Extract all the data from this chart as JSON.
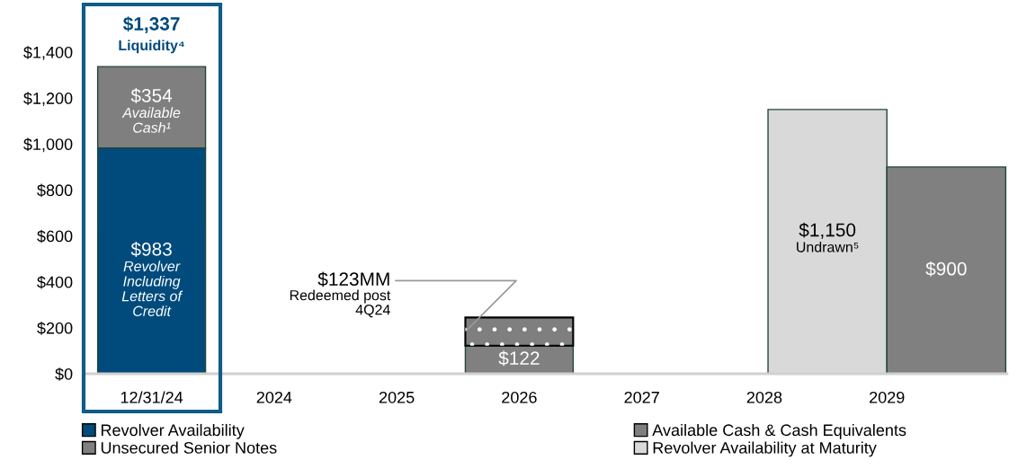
{
  "chart_data": {
    "type": "bar",
    "categories": [
      "12/31/24",
      "2024",
      "2025",
      "2026",
      "2027",
      "2028",
      "2029"
    ],
    "series": [
      {
        "name": "Revolver Availability",
        "color": "#004b7c",
        "values": [
          983,
          null,
          null,
          null,
          null,
          null,
          null
        ],
        "value_labels": [
          "$983\nRevolver\nIncluding\nLetters of\nCredit",
          null,
          null,
          null,
          null,
          null,
          null
        ]
      },
      {
        "name": "Available Cash & Cash Equivalents",
        "color": "#7f7f7f",
        "values": [
          354,
          null,
          null,
          null,
          null,
          null,
          null
        ],
        "base": [
          983,
          null,
          null,
          null,
          null,
          null,
          null
        ],
        "value_labels": [
          "$354\nAvailable\nCash¹",
          null,
          null,
          null,
          null,
          null,
          null
        ]
      },
      {
        "name": "Revolver Availability at Maturity",
        "color": "#d9d9d9",
        "values": [
          null,
          null,
          null,
          null,
          null,
          null,
          1150
        ],
        "value_labels": [
          null,
          null,
          null,
          null,
          null,
          null,
          "$1,150\nUndrawn⁵"
        ]
      },
      {
        "name": "Unsecured Senior Notes",
        "color": "#808080",
        "values": [
          null,
          null,
          null,
          122,
          null,
          null,
          900
        ],
        "value_labels": [
          null,
          null,
          null,
          "$122",
          null,
          null,
          "$900"
        ]
      },
      {
        "color": "#7f7f7f",
        "values": [
          null,
          null,
          null,
          123,
          null,
          null,
          null
        ],
        "base": [
          null,
          null,
          null,
          122,
          null,
          null,
          null
        ],
        "value_labels": [
          null,
          null,
          null,
          "$123MM\nRedeemed post\n4Q24",
          null,
          null,
          null
        ]
      }
    ],
    "totals": [
      "$1,337",
      null,
      null,
      null,
      null,
      null,
      null
    ],
    "annotations": [
      "Liquidity⁴"
    ],
    "ylim": [
      0,
      1400
    ],
    "yticks": [
      {
        "value": 0,
        "label": "$0"
      },
      {
        "value": 200,
        "label": "$200"
      },
      {
        "value": 400,
        "label": "$400"
      },
      {
        "value": 600,
        "label": "$600"
      },
      {
        "value": 800,
        "label": "$800"
      },
      {
        "value": 1000,
        "label": "$1,000"
      },
      {
        "value": 1200,
        "label": "$1,200"
      },
      {
        "value": 1400,
        "label": "$1,400"
      }
    ],
    "grid": false,
    "legend": "bottom"
  }
}
